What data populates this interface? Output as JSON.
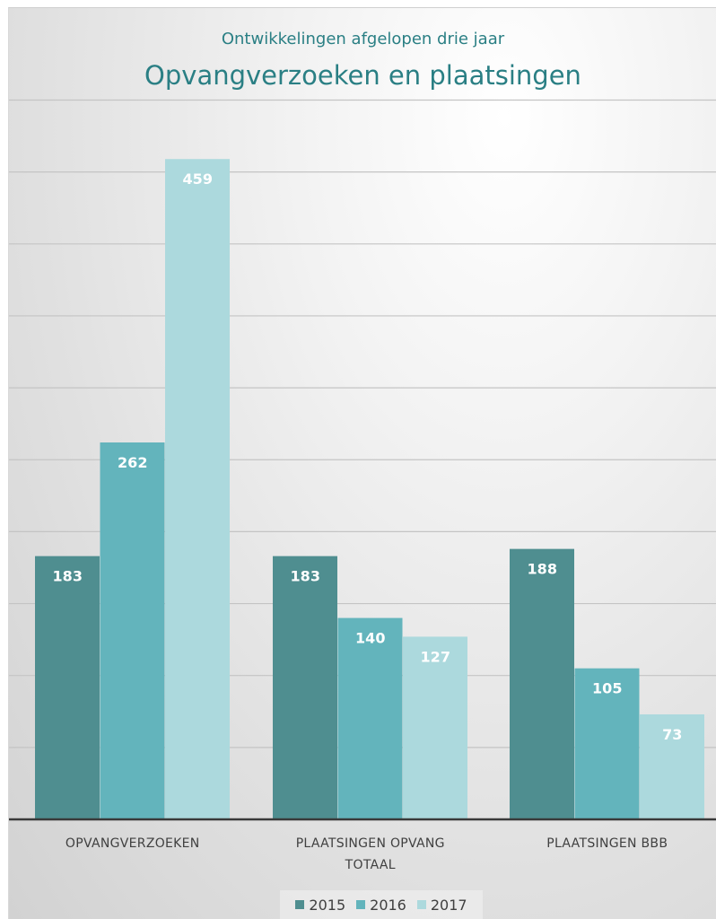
{
  "chart_data": {
    "type": "bar",
    "subtitle": "Ontwikkelingen afgelopen drie jaar",
    "title": "Opvangverzoeken en plaatsingen",
    "categories": [
      "OPVANGVERZOEKEN",
      "PLAATSINGEN OPVANG TOTAAL",
      "PLAATSINGEN BBB"
    ],
    "series": [
      {
        "name": "2015",
        "color": "#4f8e90",
        "values": [
          183,
          183,
          188
        ]
      },
      {
        "name": "2016",
        "color": "#63b4bc",
        "values": [
          262,
          140,
          105
        ]
      },
      {
        "name": "2017",
        "color": "#acd9dd",
        "values": [
          459,
          127,
          73
        ]
      }
    ],
    "ylim": [
      0,
      500
    ],
    "grid": true,
    "data_labels": true,
    "legend": "bottom"
  }
}
